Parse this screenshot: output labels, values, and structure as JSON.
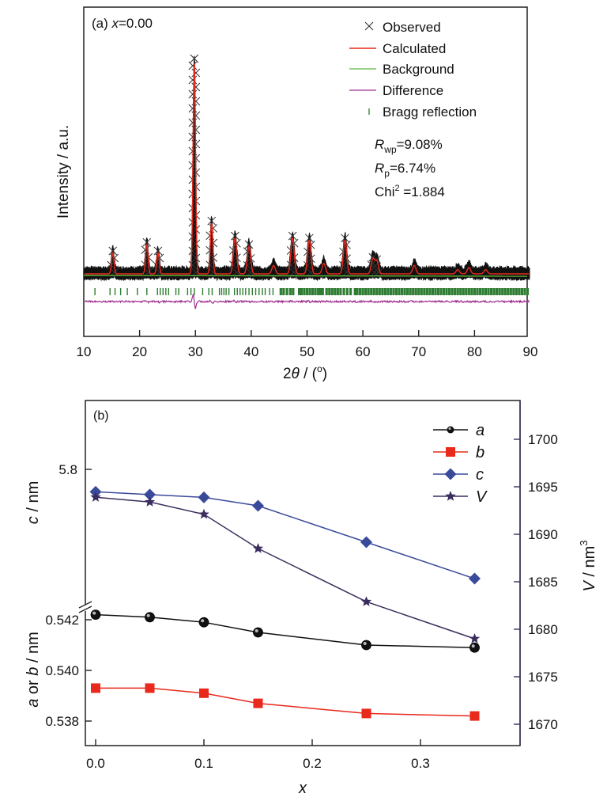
{
  "chart_data": [
    {
      "panel": "a",
      "type": "line",
      "title": "(a) x=0.00",
      "title_parts": {
        "prefix": "(a) ",
        "var": "x",
        "suffix": "=0.00"
      },
      "xlabel": "2θ / (°)",
      "xlabel_parts": {
        "num": "2",
        "theta": "θ",
        "rest": " / (",
        "deg": "o",
        "close": ")"
      },
      "ylabel": "Intensity / a.u.",
      "xlim": [
        10,
        90
      ],
      "x_ticks": [
        10,
        20,
        30,
        40,
        50,
        60,
        70,
        80,
        90
      ],
      "x_tick_labels": [
        "10",
        "20",
        "30",
        "40",
        "50",
        "60",
        "70",
        "80",
        "90"
      ],
      "y_ticks": [],
      "legend": {
        "placement": "top-right",
        "entries": [
          {
            "label": "Observed",
            "symbol": "x-marker",
            "color": "#333333"
          },
          {
            "label": "Calculated",
            "symbol": "line",
            "color": "#e8291c"
          },
          {
            "label": "Background",
            "symbol": "line",
            "color": "#5cb83a"
          },
          {
            "label": "Difference",
            "symbol": "line",
            "color": "#a0308f"
          },
          {
            "label": "Bragg reflection",
            "symbol": "tick",
            "color": "#2e7d32"
          }
        ]
      },
      "annotations": [
        {
          "main": "R",
          "sub": "wp",
          "value": "=9.08%"
        },
        {
          "main": "R",
          "sub": "p",
          "value": "=6.74%"
        },
        {
          "main": "Chi",
          "sup": "2",
          "value": " =1.884"
        }
      ],
      "background_level": 0.0,
      "peaks": [
        {
          "two_theta": 15.2,
          "relative_intensity": 0.1
        },
        {
          "two_theta": 21.3,
          "relative_intensity": 0.14
        },
        {
          "two_theta": 23.3,
          "relative_intensity": 0.1
        },
        {
          "two_theta": 29.8,
          "relative_intensity": 1.0
        },
        {
          "two_theta": 32.9,
          "relative_intensity": 0.24
        },
        {
          "two_theta": 37.1,
          "relative_intensity": 0.17
        },
        {
          "two_theta": 39.6,
          "relative_intensity": 0.13
        },
        {
          "two_theta": 44.0,
          "relative_intensity": 0.04
        },
        {
          "two_theta": 47.4,
          "relative_intensity": 0.17
        },
        {
          "two_theta": 50.4,
          "relative_intensity": 0.16
        },
        {
          "two_theta": 53.0,
          "relative_intensity": 0.05
        },
        {
          "two_theta": 56.8,
          "relative_intensity": 0.16
        },
        {
          "two_theta": 61.8,
          "relative_intensity": 0.07
        },
        {
          "two_theta": 62.5,
          "relative_intensity": 0.06
        },
        {
          "two_theta": 69.2,
          "relative_intensity": 0.04
        },
        {
          "two_theta": 77.0,
          "relative_intensity": 0.02
        },
        {
          "two_theta": 79.0,
          "relative_intensity": 0.03
        },
        {
          "two_theta": 82.0,
          "relative_intensity": 0.02
        }
      ],
      "bragg_positions": [
        12.0,
        14.7,
        15.6,
        16.6,
        17.8,
        19.6,
        21.3,
        23.2,
        23.7,
        24.2,
        24.7,
        25.2,
        26.5,
        27.0,
        28.6,
        29.2,
        29.8,
        31.3,
        32.4,
        33.0,
        34.3,
        34.7,
        35.1,
        35.5,
        36.0,
        37.0,
        37.5,
        38.0,
        38.5,
        39.0,
        39.6,
        40.2,
        40.8,
        41.4,
        42.0,
        42.5,
        43.3,
        43.9,
        45.3,
        45.8,
        46.4,
        47.0,
        47.5,
        48.6,
        49.0,
        49.5,
        50.0,
        50.5,
        51.0,
        51.5,
        52.0,
        52.4,
        52.8,
        53.5,
        54.0,
        54.5,
        55.0,
        55.5,
        56.0,
        56.6,
        57.2,
        57.8,
        58.6,
        59.0,
        59.5,
        60.0,
        60.5,
        61.0,
        61.5,
        62.0,
        62.5,
        63.0,
        63.5,
        64.0,
        64.5,
        65.0,
        65.5,
        66.0,
        66.5,
        67.0,
        67.5,
        68.0,
        68.5,
        69.0,
        69.5,
        70.0,
        70.5,
        71.0,
        71.5,
        72.0,
        72.5,
        73.0,
        73.5,
        74.0,
        74.5,
        75.0,
        75.5,
        76.0,
        76.5,
        77.0,
        77.5,
        78.0,
        78.5,
        79.0,
        79.5,
        80.0,
        80.5,
        81.0,
        81.5,
        82.0,
        82.5,
        83.0,
        83.5,
        84.0,
        84.5,
        85.0,
        85.5,
        86.0,
        86.5,
        87.0,
        87.5,
        88.0,
        88.5,
        89.0,
        89.5
      ]
    },
    {
      "panel": "b",
      "type": "line",
      "title": "(b)",
      "xlabel": "x",
      "ylabel_left_top": "c / nm",
      "ylabel_left_top_parts": {
        "var": "c",
        "rest": " / nm"
      },
      "ylabel_left_bottom": "a or b / nm",
      "ylabel_left_bottom_parts": {
        "a": "a",
        "mid": " or ",
        "b": "b",
        "rest": " / nm"
      },
      "ylabel_right": "V / nm³",
      "ylabel_right_parts": {
        "var": "V",
        "rest": " / nm",
        "sup": "3"
      },
      "x": [
        0.0,
        0.05,
        0.1,
        0.15,
        0.25,
        0.35
      ],
      "xlim": [
        -0.01,
        0.35
      ],
      "x_ticks": [
        0.0,
        0.1,
        0.2,
        0.3
      ],
      "x_tick_labels": [
        "0.0",
        "0.1",
        "0.2",
        "0.3"
      ],
      "left_axis_top": {
        "ticks": [
          5.8
        ],
        "tick_labels": [
          "5.8"
        ],
        "ylim_approx": [
          5.75,
          5.815
        ]
      },
      "left_axis_bottom": {
        "ticks": [
          0.538,
          0.54,
          0.542
        ],
        "tick_labels": [
          "0.538",
          "0.540",
          "0.542"
        ],
        "ylim": [
          0.537,
          0.5426
        ]
      },
      "right_axis": {
        "ticks": [
          1670,
          1675,
          1680,
          1685,
          1690,
          1695,
          1700
        ],
        "tick_labels": [
          "1670",
          "1675",
          "1680",
          "1685",
          "1690",
          "1695",
          "1700"
        ],
        "ylim": [
          1667.9,
          1704.2
        ],
        "color": "#3b2d5e"
      },
      "axis_break": "left axis broken between 0.542 and c-segment",
      "legend": {
        "placement": "top-right",
        "entries": [
          "a",
          "b",
          "c",
          "V"
        ]
      },
      "series": [
        {
          "name": "a",
          "axis": "left_bottom",
          "marker": "sphere",
          "color": "#111111",
          "values": [
            0.5422,
            0.5421,
            0.5419,
            0.5415,
            0.541,
            0.5409
          ]
        },
        {
          "name": "b",
          "axis": "left_bottom",
          "marker": "square",
          "color": "#e8291c",
          "values": [
            0.5393,
            0.5393,
            0.5391,
            0.5387,
            0.5383,
            0.5382
          ]
        },
        {
          "name": "c",
          "axis": "left_top",
          "marker": "diamond",
          "color": "#3a4a9a",
          "values": [
            5.792,
            5.791,
            5.79,
            5.787,
            5.774,
            5.761
          ]
        },
        {
          "name": "V",
          "axis": "right",
          "marker": "star",
          "color": "#3b2d5e",
          "values": [
            1693.9,
            1693.4,
            1692.1,
            1688.5,
            1682.9,
            1679.0
          ]
        }
      ]
    }
  ]
}
